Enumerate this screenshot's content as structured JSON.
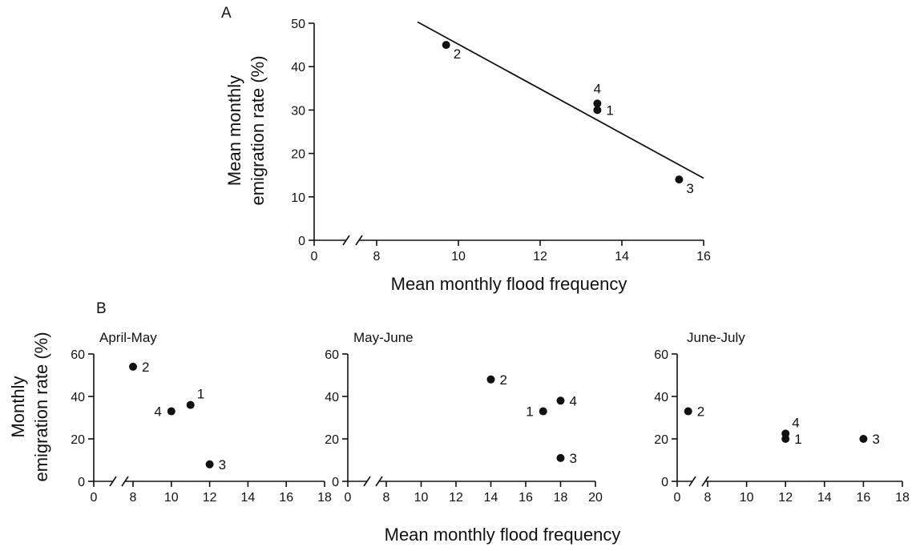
{
  "panel_a": {
    "label": "A",
    "ylabel_line1": "Mean monthly",
    "ylabel_line2": "emigration rate (%)",
    "xlabel": "Mean monthly flood frequency"
  },
  "panel_b": {
    "label": "B",
    "ylabel_line1": "Monthly",
    "ylabel_line2": "emigration rate (%)",
    "xlabel": "Mean monthly flood frequency"
  },
  "chart_data": [
    {
      "type": "scatter",
      "panel": "A",
      "title": "",
      "xlabel": "Mean monthly flood frequency",
      "ylabel": "Mean monthly emigration rate (%)",
      "xlim": [
        0,
        16
      ],
      "ylim": [
        0,
        50
      ],
      "axis_break": true,
      "x_ticks": [
        0,
        8,
        10,
        12,
        14,
        16
      ],
      "y_ticks": [
        0,
        10,
        20,
        30,
        40,
        50
      ],
      "points": [
        {
          "label": "1",
          "x": 13.4,
          "y": 30,
          "label_pos": "right"
        },
        {
          "label": "2",
          "x": 9.7,
          "y": 45,
          "label_pos": "below-right"
        },
        {
          "label": "3",
          "x": 15.4,
          "y": 14,
          "label_pos": "below-right"
        },
        {
          "label": "4",
          "x": 13.4,
          "y": 31.5,
          "label_pos": "above"
        }
      ],
      "regression_line": {
        "x": [
          9.0,
          16.0
        ],
        "y": [
          50.3,
          14.3
        ]
      }
    },
    {
      "type": "scatter",
      "panel": "B",
      "title": "April-May",
      "xlim": [
        0,
        18
      ],
      "ylim": [
        0,
        60
      ],
      "axis_break": true,
      "x_ticks": [
        0,
        8,
        10,
        12,
        14,
        16,
        18
      ],
      "y_ticks": [
        0,
        20,
        40,
        60
      ],
      "points": [
        {
          "label": "1",
          "x": 11,
          "y": 36,
          "label_pos": "above-right"
        },
        {
          "label": "2",
          "x": 8,
          "y": 54,
          "label_pos": "right"
        },
        {
          "label": "3",
          "x": 12,
          "y": 8,
          "label_pos": "right"
        },
        {
          "label": "4",
          "x": 10,
          "y": 33,
          "label_pos": "left"
        }
      ]
    },
    {
      "type": "scatter",
      "panel": "B",
      "title": "May-June",
      "xlim": [
        0,
        20
      ],
      "ylim": [
        0,
        60
      ],
      "axis_break": true,
      "x_ticks": [
        0,
        8,
        10,
        12,
        14,
        16,
        18,
        20
      ],
      "y_ticks": [
        0,
        20,
        40,
        60
      ],
      "points": [
        {
          "label": "1",
          "x": 17,
          "y": 33,
          "label_pos": "left"
        },
        {
          "label": "2",
          "x": 14,
          "y": 48,
          "label_pos": "right"
        },
        {
          "label": "3",
          "x": 18,
          "y": 11,
          "label_pos": "right"
        },
        {
          "label": "4",
          "x": 18,
          "y": 38,
          "label_pos": "right"
        }
      ]
    },
    {
      "type": "scatter",
      "panel": "B",
      "title": "June-July",
      "xlim": [
        0,
        18
      ],
      "ylim": [
        0,
        60
      ],
      "axis_break": true,
      "x_ticks": [
        0,
        8,
        10,
        12,
        14,
        16,
        18
      ],
      "y_ticks": [
        0,
        20,
        40,
        60
      ],
      "points": [
        {
          "label": "1",
          "x": 12,
          "y": 20,
          "label_pos": "right"
        },
        {
          "label": "2",
          "x": 7,
          "y": 33,
          "label_pos": "right"
        },
        {
          "label": "3",
          "x": 16,
          "y": 20,
          "label_pos": "right"
        },
        {
          "label": "4",
          "x": 12,
          "y": 22.5,
          "label_pos": "above-right"
        }
      ]
    }
  ]
}
